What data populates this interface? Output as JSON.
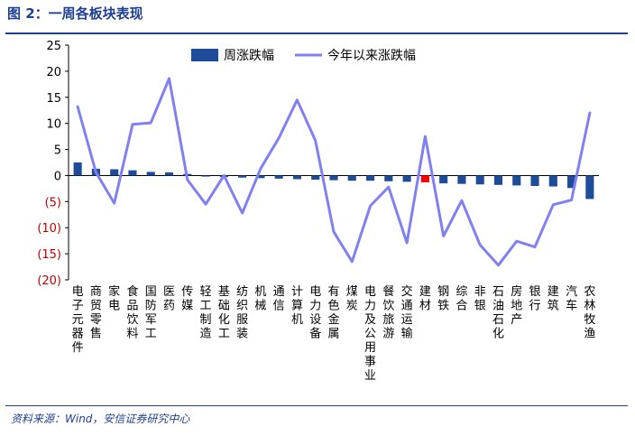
{
  "figure": {
    "title": "图 2：一周各板块表现",
    "source": "资料来源：Wind，安信证券研究中心"
  },
  "colors": {
    "bar": "#1f4c99",
    "bar_highlight": "#ff0000",
    "line": "#8080f0",
    "negative_tick": "#c00000",
    "accent": "#1f3f8f"
  },
  "chart_data": {
    "type": "bar",
    "categories": [
      "电子元器件",
      "商贸零售",
      "家电",
      "食品饮料",
      "国防军工",
      "医药",
      "传媒",
      "轻工制造",
      "基础化工",
      "纺织服装",
      "机械",
      "通信",
      "计算机",
      "电力设备",
      "有色金属",
      "煤炭",
      "电力及公用事业",
      "餐饮旅游",
      "交通运输",
      "建材",
      "钢铁",
      "综合",
      "非银",
      "石油石化",
      "房地产",
      "银行",
      "建筑",
      "汽车",
      "农林牧渔"
    ],
    "series": [
      {
        "name": "周涨跌幅",
        "kind": "bar",
        "values": [
          2.5,
          1.3,
          1.2,
          1.0,
          0.7,
          0.6,
          0.3,
          -0.2,
          -0.3,
          -0.4,
          -0.5,
          -0.6,
          -0.7,
          -0.8,
          -0.9,
          -1.0,
          -1.0,
          -1.1,
          -1.2,
          -1.3,
          -1.5,
          -1.6,
          -1.7,
          -1.8,
          -1.9,
          -2.0,
          -2.1,
          -2.4,
          -4.5
        ]
      },
      {
        "name": "今年以来涨跌幅",
        "kind": "line",
        "values": [
          13.2,
          0.6,
          -5.3,
          9.8,
          10.1,
          18.6,
          -0.8,
          -5.5,
          0.0,
          -7.2,
          1.3,
          7.2,
          14.5,
          6.7,
          -10.8,
          -16.5,
          -5.8,
          -2.2,
          -12.9,
          7.5,
          -11.6,
          -4.8,
          -13.3,
          -17.2,
          -12.6,
          -13.7,
          -5.6,
          -4.7,
          12.0
        ]
      }
    ],
    "highlight_category": "建材",
    "ylim": [
      -20,
      25
    ],
    "y_ticks": [
      25,
      20,
      15,
      10,
      5,
      0,
      -5,
      -10,
      -15,
      -20
    ],
    "y_tick_labels": [
      "25",
      "20",
      "15",
      "10",
      "5",
      "0",
      "(5)",
      "(10)",
      "(15)",
      "(20)"
    ],
    "title": "",
    "xlabel": "",
    "ylabel": "",
    "legend_position": "top-center",
    "grid": false
  }
}
